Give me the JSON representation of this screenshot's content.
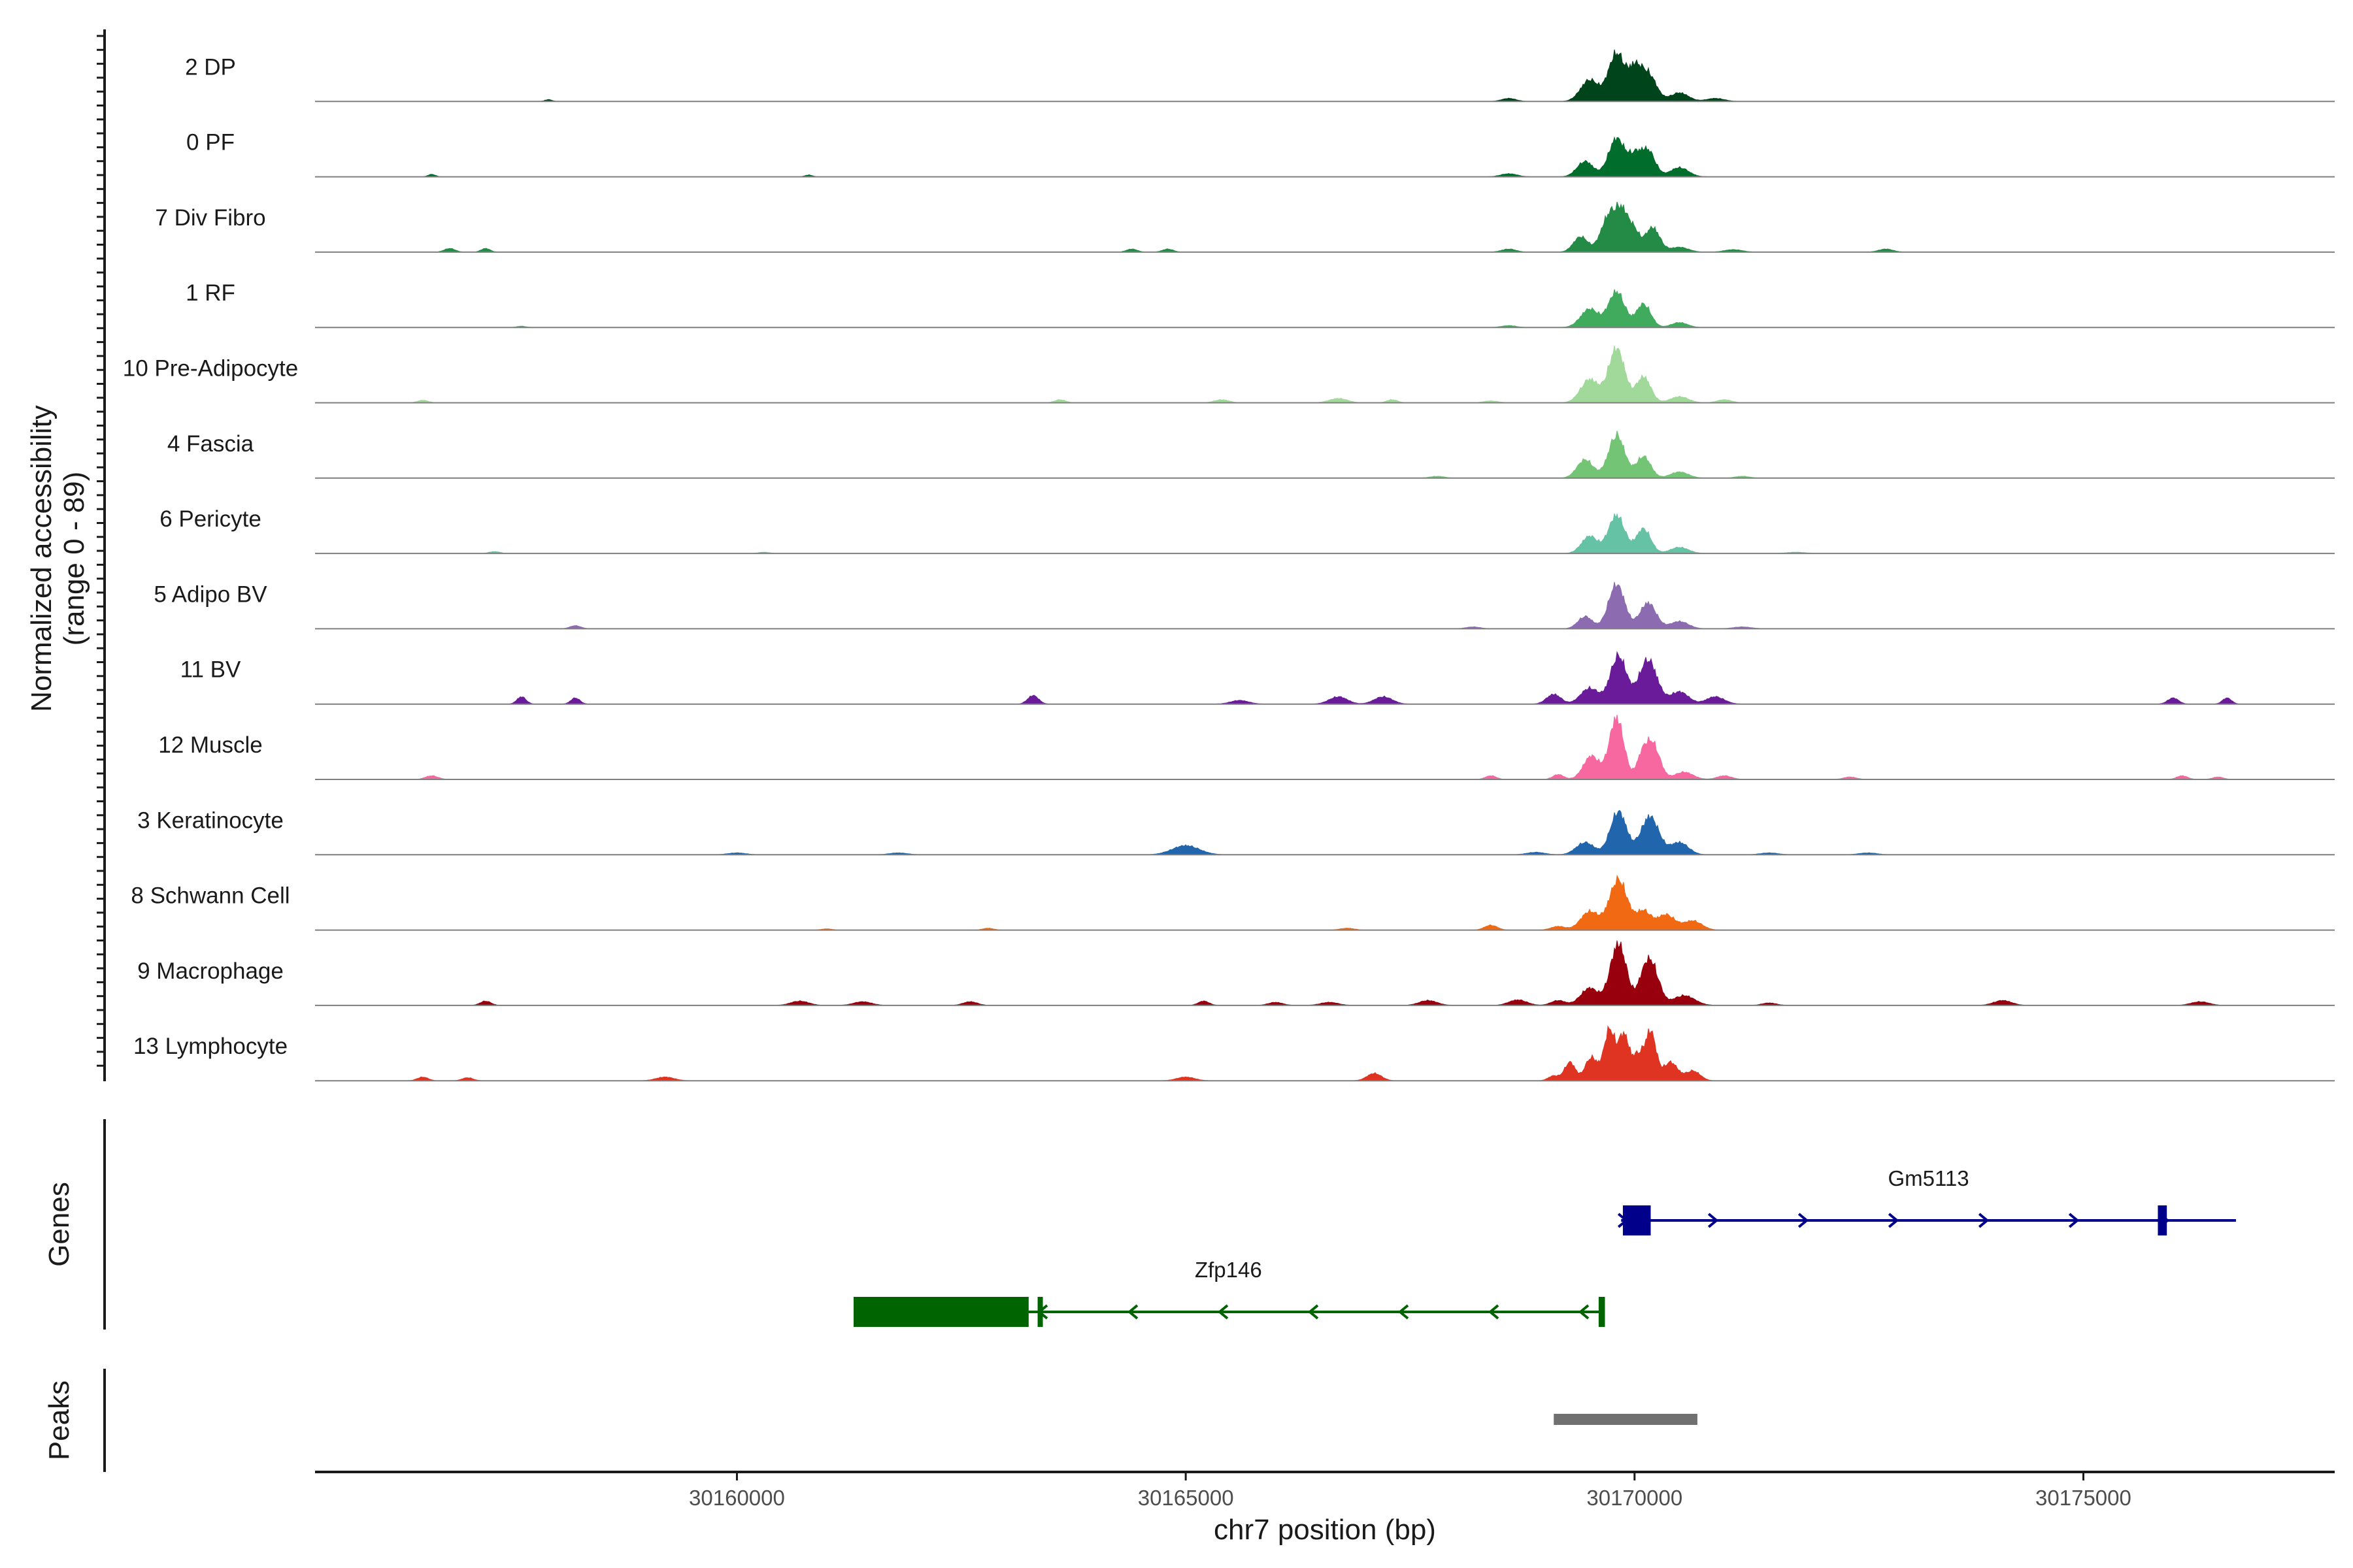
{
  "chart_data": {
    "type": "area",
    "title": "",
    "ylabel": "Normalized accessibility\n(range 0 - 89)",
    "ylabel_lines": [
      "Normalized accessibility",
      "(range 0 - 89)"
    ],
    "xlabel": "chr7 position (bp)",
    "xlim": [
      30155300,
      30177800
    ],
    "ylim": [
      0,
      89
    ],
    "x_ticks": [
      30160000,
      30165000,
      30170000,
      30175000
    ],
    "x_tick_labels": [
      "30160000",
      "30165000",
      "30170000",
      "30175000"
    ],
    "tracks": [
      {
        "label": "2 DP",
        "color": "#00441b",
        "peaks": [
          [
            30169500,
            0.35,
            100
          ],
          [
            30169800,
            0.78,
            90
          ],
          [
            30170000,
            0.45,
            70
          ],
          [
            30170150,
            0.45,
            90
          ],
          [
            30170500,
            0.14,
            100
          ],
          [
            30168600,
            0.05,
            80
          ],
          [
            30170900,
            0.05,
            100
          ],
          [
            30157900,
            0.03,
            40
          ]
        ]
      },
      {
        "label": "0 PF",
        "color": "#006d2c",
        "peaks": [
          [
            30169450,
            0.25,
            90
          ],
          [
            30169800,
            0.62,
            90
          ],
          [
            30170000,
            0.3,
            70
          ],
          [
            30170150,
            0.42,
            80
          ],
          [
            30170500,
            0.15,
            100
          ],
          [
            30168600,
            0.05,
            90
          ],
          [
            30156600,
            0.04,
            40
          ],
          [
            30160800,
            0.03,
            40
          ]
        ]
      },
      {
        "label": "7 Div Fibro",
        "color": "#238b45",
        "peaks": [
          [
            30169400,
            0.25,
            80
          ],
          [
            30169720,
            0.6,
            90
          ],
          [
            30169870,
            0.55,
            70
          ],
          [
            30170000,
            0.3,
            60
          ],
          [
            30170200,
            0.4,
            80
          ],
          [
            30170500,
            0.08,
            100
          ],
          [
            30156800,
            0.06,
            60
          ],
          [
            30157200,
            0.06,
            50
          ],
          [
            30164400,
            0.05,
            60
          ],
          [
            30164800,
            0.05,
            60
          ],
          [
            30168600,
            0.05,
            80
          ],
          [
            30171100,
            0.04,
            100
          ],
          [
            30172800,
            0.05,
            80
          ]
        ]
      },
      {
        "label": "1 RF",
        "color": "#41ab5d",
        "peaks": [
          [
            30169500,
            0.3,
            100
          ],
          [
            30169800,
            0.58,
            90
          ],
          [
            30170100,
            0.38,
            80
          ],
          [
            30170500,
            0.08,
            90
          ],
          [
            30168600,
            0.03,
            80
          ],
          [
            30157600,
            0.02,
            50
          ]
        ]
      },
      {
        "label": "10 Pre-Adipocyte",
        "color": "#a1d99b",
        "peaks": [
          [
            30169500,
            0.38,
            100
          ],
          [
            30169800,
            0.88,
            90
          ],
          [
            30170100,
            0.42,
            80
          ],
          [
            30170500,
            0.1,
            100
          ],
          [
            30171000,
            0.05,
            80
          ],
          [
            30156500,
            0.04,
            60
          ],
          [
            30163600,
            0.05,
            60
          ],
          [
            30165400,
            0.05,
            80
          ],
          [
            30166700,
            0.07,
            100
          ],
          [
            30167300,
            0.05,
            60
          ],
          [
            30168400,
            0.03,
            80
          ]
        ]
      },
      {
        "label": "4 Fascia",
        "color": "#74c476",
        "peaks": [
          [
            30169450,
            0.3,
            90
          ],
          [
            30169800,
            0.7,
            90
          ],
          [
            30170100,
            0.35,
            80
          ],
          [
            30170500,
            0.1,
            100
          ],
          [
            30167800,
            0.03,
            80
          ],
          [
            30171200,
            0.03,
            80
          ]
        ]
      },
      {
        "label": "6 Pericyte",
        "color": "#66c2a4",
        "peaks": [
          [
            30169500,
            0.28,
            90
          ],
          [
            30169800,
            0.62,
            90
          ],
          [
            30170100,
            0.4,
            80
          ],
          [
            30170500,
            0.1,
            100
          ],
          [
            30157300,
            0.03,
            60
          ],
          [
            30160300,
            0.02,
            60
          ],
          [
            30171800,
            0.02,
            100
          ]
        ]
      },
      {
        "label": "5 Adipo BV",
        "color": "#8c6bb1",
        "peaks": [
          [
            30169450,
            0.2,
            80
          ],
          [
            30169800,
            0.72,
            90
          ],
          [
            30170150,
            0.42,
            90
          ],
          [
            30170500,
            0.12,
            100
          ],
          [
            30158200,
            0.05,
            60
          ],
          [
            30168200,
            0.03,
            80
          ],
          [
            30171200,
            0.03,
            100
          ]
        ]
      },
      {
        "label": "11 BV",
        "color": "#6a1b9a",
        "peaks": [
          [
            30169500,
            0.26,
            100
          ],
          [
            30169820,
            0.78,
            90
          ],
          [
            30170150,
            0.72,
            100
          ],
          [
            30170500,
            0.2,
            100
          ],
          [
            30170900,
            0.12,
            100
          ],
          [
            30157600,
            0.12,
            50
          ],
          [
            30158200,
            0.1,
            50
          ],
          [
            30163300,
            0.14,
            60
          ],
          [
            30165600,
            0.06,
            100
          ],
          [
            30166700,
            0.12,
            100
          ],
          [
            30167200,
            0.12,
            100
          ],
          [
            30169100,
            0.16,
            80
          ],
          [
            30176000,
            0.1,
            60
          ],
          [
            30176600,
            0.1,
            50
          ]
        ]
      },
      {
        "label": "12 Muscle",
        "color": "#f768a1",
        "peaks": [
          [
            30169520,
            0.38,
            90
          ],
          [
            30169800,
            1.0,
            80
          ],
          [
            30170080,
            0.3,
            60
          ],
          [
            30170200,
            0.58,
            80
          ],
          [
            30170550,
            0.12,
            100
          ],
          [
            30169150,
            0.08,
            60
          ],
          [
            30168400,
            0.06,
            60
          ],
          [
            30171000,
            0.06,
            80
          ],
          [
            30156600,
            0.06,
            70
          ],
          [
            30172400,
            0.04,
            70
          ],
          [
            30176100,
            0.06,
            60
          ],
          [
            30176500,
            0.04,
            60
          ]
        ]
      },
      {
        "label": "3 Keratinocyte",
        "color": "#2166ac",
        "peaks": [
          [
            30169450,
            0.2,
            100
          ],
          [
            30169820,
            0.7,
            90
          ],
          [
            30170170,
            0.62,
            100
          ],
          [
            30170500,
            0.2,
            100
          ],
          [
            30165000,
            0.15,
            150
          ],
          [
            30160000,
            0.03,
            100
          ],
          [
            30161800,
            0.03,
            100
          ],
          [
            30168900,
            0.04,
            100
          ],
          [
            30171500,
            0.03,
            100
          ],
          [
            30172600,
            0.03,
            100
          ]
        ]
      },
      {
        "label": "8 Schwann Cell",
        "color": "#f16913",
        "peaks": [
          [
            30169500,
            0.3,
            100
          ],
          [
            30169820,
            0.82,
            100
          ],
          [
            30170100,
            0.3,
            80
          ],
          [
            30170350,
            0.25,
            100
          ],
          [
            30170650,
            0.15,
            100
          ],
          [
            30168400,
            0.08,
            70
          ],
          [
            30169150,
            0.06,
            80
          ],
          [
            30161000,
            0.02,
            60
          ],
          [
            30162800,
            0.03,
            60
          ],
          [
            30166800,
            0.03,
            80
          ]
        ]
      },
      {
        "label": "9 Macrophage",
        "color": "#99000d",
        "peaks": [
          [
            30169500,
            0.28,
            100
          ],
          [
            30169820,
            1.0,
            90
          ],
          [
            30170100,
            0.35,
            70
          ],
          [
            30170200,
            0.58,
            80
          ],
          [
            30170550,
            0.16,
            120
          ],
          [
            30157200,
            0.07,
            60
          ],
          [
            30160700,
            0.07,
            100
          ],
          [
            30161400,
            0.06,
            100
          ],
          [
            30162600,
            0.06,
            80
          ],
          [
            30165200,
            0.07,
            60
          ],
          [
            30166000,
            0.05,
            80
          ],
          [
            30166600,
            0.05,
            100
          ],
          [
            30167700,
            0.08,
            100
          ],
          [
            30168700,
            0.09,
            100
          ],
          [
            30169150,
            0.08,
            80
          ],
          [
            30171500,
            0.04,
            80
          ],
          [
            30174100,
            0.08,
            100
          ],
          [
            30176300,
            0.06,
            100
          ]
        ]
      },
      {
        "label": "13 Lymphocyte",
        "color": "#e03423",
        "peaks": [
          [
            30169280,
            0.3,
            60
          ],
          [
            30169520,
            0.38,
            70
          ],
          [
            30169720,
            0.82,
            60
          ],
          [
            30169880,
            0.74,
            60
          ],
          [
            30170040,
            0.4,
            60
          ],
          [
            30170180,
            0.78,
            60
          ],
          [
            30170400,
            0.3,
            80
          ],
          [
            30170650,
            0.16,
            80
          ],
          [
            30156500,
            0.06,
            60
          ],
          [
            30157000,
            0.05,
            60
          ],
          [
            30159200,
            0.06,
            100
          ],
          [
            30165000,
            0.06,
            100
          ],
          [
            30167100,
            0.12,
            80
          ],
          [
            30169100,
            0.08,
            60
          ]
        ]
      }
    ],
    "genes": [
      {
        "name": "Gm5113",
        "strand": "+",
        "start": 30169850,
        "end": 30176700,
        "exons": [
          [
            30169870,
            30170180
          ],
          [
            30175830,
            30175930
          ]
        ],
        "color": "#00008b"
      },
      {
        "name": "Zfp146",
        "strand": "-",
        "start": 30161300,
        "end": 30169650,
        "exons": [
          [
            30161300,
            30163250
          ],
          [
            30163350,
            30163400
          ],
          [
            30169600,
            30169670
          ]
        ],
        "color": "#006400"
      }
    ],
    "peak_regions": [
      [
        30169100,
        30170700
      ]
    ],
    "panel_labels": {
      "genes": "Genes",
      "peaks": "Peaks"
    }
  }
}
